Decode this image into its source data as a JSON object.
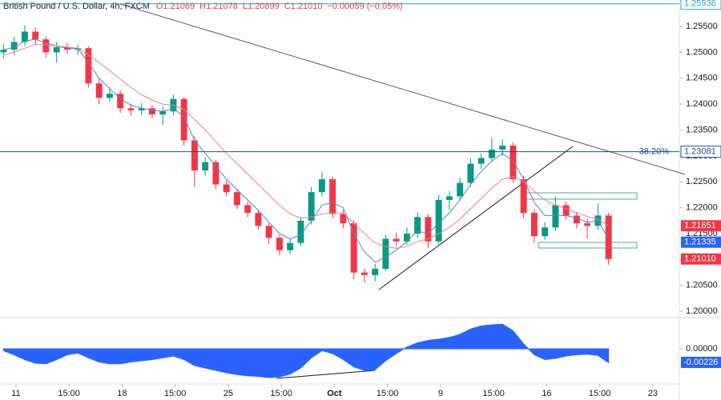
{
  "chart_data": [
    {
      "type": "candlestick",
      "title": "British Pound / U.S. Dollar, 4h, FXCM",
      "ohlc_labels": [
        "O1.21069",
        "H1.21078",
        "L1.20899",
        "C1.21010",
        "−0.00059 (−0.05%)"
      ],
      "xlim": [
        0,
        192
      ],
      "ylim": [
        1.1991,
        1.2601
      ],
      "yticks": [
        {
          "value": 1.2,
          "label": "1.20000"
        },
        {
          "value": 1.205,
          "label": "1.20500"
        },
        {
          "value": 1.21,
          "label": "1.21000"
        },
        {
          "value": 1.215,
          "label": "1.21500"
        },
        {
          "value": 1.22,
          "label": "1.22000"
        },
        {
          "value": 1.225,
          "label": "1.22500"
        },
        {
          "value": 1.23,
          "label": "1.23000"
        },
        {
          "value": 1.235,
          "label": "1.23500"
        },
        {
          "value": 1.24,
          "label": "1.24000"
        },
        {
          "value": 1.245,
          "label": "1.24500"
        },
        {
          "value": 1.25,
          "label": "1.25000"
        },
        {
          "value": 1.255,
          "label": "1.25500"
        }
      ],
      "up_color": "#089981",
      "down_color": "#f23645",
      "x": [
        1,
        4,
        7,
        10,
        13,
        16,
        19,
        22,
        25,
        28,
        31,
        34,
        37,
        40,
        43,
        46,
        49,
        52,
        55,
        58,
        61,
        64,
        67,
        70,
        73,
        76,
        79,
        82,
        85,
        88,
        91,
        94,
        97,
        100,
        103,
        106,
        109,
        112,
        115,
        118,
        121,
        124,
        127,
        130,
        133,
        136,
        139,
        142,
        145,
        148,
        151,
        154,
        157,
        160,
        163,
        166,
        169,
        172
      ],
      "open": [
        1.25,
        1.2505,
        1.252,
        1.254,
        1.2525,
        1.25,
        1.251,
        1.2505,
        1.2508,
        1.244,
        1.2412,
        1.242,
        1.2392,
        1.2388,
        1.2392,
        1.238,
        1.2386,
        1.241,
        1.233,
        1.2272,
        1.2288,
        1.2245,
        1.223,
        1.2205,
        1.219,
        1.2165,
        1.2142,
        1.2118,
        1.2132,
        1.2175,
        1.223,
        1.2255,
        1.2188,
        1.217,
        1.2075,
        1.207,
        1.2082,
        1.214,
        1.2135,
        1.215,
        1.2182,
        1.2135,
        1.2215,
        1.2222,
        1.2248,
        1.2285,
        1.2296,
        1.2312,
        1.232,
        1.2255,
        1.219,
        1.2145,
        1.2162,
        1.2205,
        1.2185,
        1.217,
        1.2165,
        1.2185
      ],
      "high": [
        1.2516,
        1.253,
        1.2552,
        1.2548,
        1.253,
        1.252,
        1.2518,
        1.2515,
        1.2512,
        1.245,
        1.2432,
        1.2426,
        1.24,
        1.2402,
        1.2398,
        1.2395,
        1.2418,
        1.2414,
        1.2338,
        1.2298,
        1.2292,
        1.2252,
        1.2236,
        1.2212,
        1.2196,
        1.217,
        1.2148,
        1.214,
        1.2182,
        1.224,
        1.227,
        1.226,
        1.2196,
        1.2175,
        1.2082,
        1.2092,
        1.2148,
        1.2152,
        1.2162,
        1.219,
        1.2188,
        1.2225,
        1.2232,
        1.2258,
        1.2295,
        1.2305,
        1.2335,
        1.2332,
        1.2326,
        1.2262,
        1.2198,
        1.2172,
        1.2222,
        1.2212,
        1.2192,
        1.2178,
        1.2208,
        1.219
      ],
      "low": [
        1.2488,
        1.2495,
        1.2512,
        1.2515,
        1.249,
        1.248,
        1.2496,
        1.2495,
        1.2432,
        1.24,
        1.2405,
        1.2383,
        1.2378,
        1.238,
        1.2372,
        1.236,
        1.2378,
        1.232,
        1.224,
        1.2262,
        1.2236,
        1.2222,
        1.2198,
        1.2182,
        1.2158,
        1.213,
        1.2108,
        1.211,
        1.2126,
        1.2168,
        1.2222,
        1.218,
        1.216,
        1.2062,
        1.2055,
        1.2058,
        1.2078,
        1.2125,
        1.2128,
        1.2142,
        1.2122,
        1.213,
        1.2195,
        1.2215,
        1.224,
        1.2275,
        1.229,
        1.23,
        1.2248,
        1.218,
        1.2132,
        1.2138,
        1.2155,
        1.2176,
        1.216,
        1.214,
        1.2158,
        1.209
      ],
      "close": [
        1.2505,
        1.252,
        1.254,
        1.2525,
        1.25,
        1.251,
        1.2505,
        1.2508,
        1.244,
        1.2412,
        1.242,
        1.2392,
        1.2388,
        1.2392,
        1.238,
        1.2386,
        1.241,
        1.233,
        1.2272,
        1.2288,
        1.2245,
        1.223,
        1.2205,
        1.219,
        1.2165,
        1.2142,
        1.2118,
        1.2132,
        1.2175,
        1.223,
        1.2255,
        1.2188,
        1.217,
        1.2075,
        1.207,
        1.2082,
        1.214,
        1.2135,
        1.215,
        1.2182,
        1.2135,
        1.2215,
        1.2222,
        1.2248,
        1.2285,
        1.2296,
        1.2312,
        1.232,
        1.2255,
        1.219,
        1.2145,
        1.2162,
        1.2205,
        1.2185,
        1.217,
        1.2165,
        1.2185,
        1.2101
      ],
      "series": [
        {
          "color": "#5b7fd6",
          "values": [
            1.2505,
            1.251,
            1.2522,
            1.2525,
            1.2518,
            1.2512,
            1.2508,
            1.2507,
            1.248,
            1.245,
            1.243,
            1.241,
            1.2398,
            1.2392,
            1.2388,
            1.2386,
            1.2392,
            1.2375,
            1.233,
            1.2305,
            1.228,
            1.2255,
            1.2235,
            1.2215,
            1.2195,
            1.2172,
            1.215,
            1.214,
            1.2148,
            1.2175,
            1.2205,
            1.221,
            1.22,
            1.215,
            1.2115,
            1.2095,
            1.2105,
            1.2118,
            1.2135,
            1.2155,
            1.215,
            1.217,
            1.219,
            1.2215,
            1.2245,
            1.227,
            1.229,
            1.2305,
            1.229,
            1.2255,
            1.221,
            1.2185,
            1.2185,
            1.2185,
            1.218,
            1.2172,
            1.2175,
            1.214
          ]
        },
        {
          "color": "#e8828a",
          "values": [
            1.2495,
            1.25,
            1.2508,
            1.2515,
            1.2515,
            1.2512,
            1.251,
            1.2508,
            1.2495,
            1.248,
            1.2465,
            1.2448,
            1.2432,
            1.2418,
            1.2408,
            1.24,
            1.2398,
            1.239,
            1.237,
            1.235,
            1.2328,
            1.2305,
            1.2285,
            1.2265,
            1.2245,
            1.2225,
            1.2205,
            1.2188,
            1.218,
            1.2182,
            1.2188,
            1.219,
            1.219,
            1.217,
            1.215,
            1.2132,
            1.2125,
            1.2122,
            1.2125,
            1.2135,
            1.214,
            1.215,
            1.2162,
            1.2178,
            1.2198,
            1.2218,
            1.2238,
            1.2255,
            1.226,
            1.225,
            1.2232,
            1.2215,
            1.2205,
            1.2198,
            1.219,
            1.2183,
            1.2178,
            1.2165
          ]
        }
      ],
      "levels": [
        {
          "value": 1.25936,
          "color": "#26a6b5"
        },
        {
          "value": 1.23081,
          "color": "#1d4f91",
          "annotation": "38.20%"
        }
      ],
      "price_labels": [
        {
          "value": 1.21651,
          "color": "#f23645"
        },
        {
          "value": 1.21335,
          "color": "#2962ff"
        },
        {
          "value": 1.2101,
          "label": "1.21010",
          "color": "#f23645"
        }
      ]
    },
    {
      "type": "area",
      "color": "#2962ff",
      "xlim": [
        0,
        192
      ],
      "ylim": [
        -0.0056,
        0.0048
      ],
      "yticks": [
        {
          "value": 0,
          "label": "0.00000"
        }
      ],
      "current": {
        "value": -0.00226,
        "label": "-0.00226"
      },
      "x": [
        1,
        4,
        7,
        10,
        13,
        16,
        19,
        22,
        25,
        28,
        31,
        34,
        37,
        40,
        43,
        46,
        49,
        52,
        55,
        58,
        61,
        64,
        67,
        70,
        73,
        76,
        79,
        82,
        85,
        88,
        91,
        94,
        97,
        100,
        103,
        106,
        109,
        112,
        115,
        118,
        121,
        124,
        127,
        130,
        133,
        136,
        139,
        142,
        145,
        148,
        151,
        154,
        157,
        160,
        163,
        166,
        169,
        172
      ],
      "values": [
        -0.0003,
        -0.001,
        -0.0018,
        -0.0024,
        -0.0025,
        -0.0018,
        -0.001,
        -0.0007,
        -0.0015,
        -0.0022,
        -0.0025,
        -0.0025,
        -0.0022,
        -0.002,
        -0.0018,
        -0.0015,
        -0.0012,
        -0.0018,
        -0.0028,
        -0.0032,
        -0.0036,
        -0.004,
        -0.0043,
        -0.0045,
        -0.0046,
        -0.0048,
        -0.0047,
        -0.0042,
        -0.0032,
        -0.0015,
        -0.0003,
        -0.0008,
        -0.0018,
        -0.003,
        -0.0036,
        -0.0035,
        -0.002,
        -0.0008,
        0.0003,
        0.001,
        0.0014,
        0.0016,
        0.0019,
        0.0024,
        0.0033,
        0.0038,
        0.004,
        0.0041,
        0.003,
        0.0008,
        -0.001,
        -0.0018,
        -0.0016,
        -0.0012,
        -0.001,
        -0.0009,
        -0.0011,
        -0.0023
      ],
      "xticks": [
        {
          "value": 4.5,
          "label": "11"
        },
        {
          "value": 19.5,
          "label": "15:00"
        },
        {
          "value": 34.5,
          "label": "18"
        },
        {
          "value": 49.5,
          "label": "15:00"
        },
        {
          "value": 64.5,
          "label": "25"
        },
        {
          "value": 79.5,
          "label": "15:00"
        },
        {
          "value": 94.5,
          "label": "Oct"
        },
        {
          "value": 109.5,
          "label": "15:00"
        },
        {
          "value": 124.5,
          "label": "9"
        },
        {
          "value": 139.5,
          "label": "15:00"
        },
        {
          "value": 154.5,
          "label": "16"
        },
        {
          "value": 169.5,
          "label": "15:00"
        },
        {
          "value": 184.5,
          "label": "23"
        }
      ]
    }
  ]
}
